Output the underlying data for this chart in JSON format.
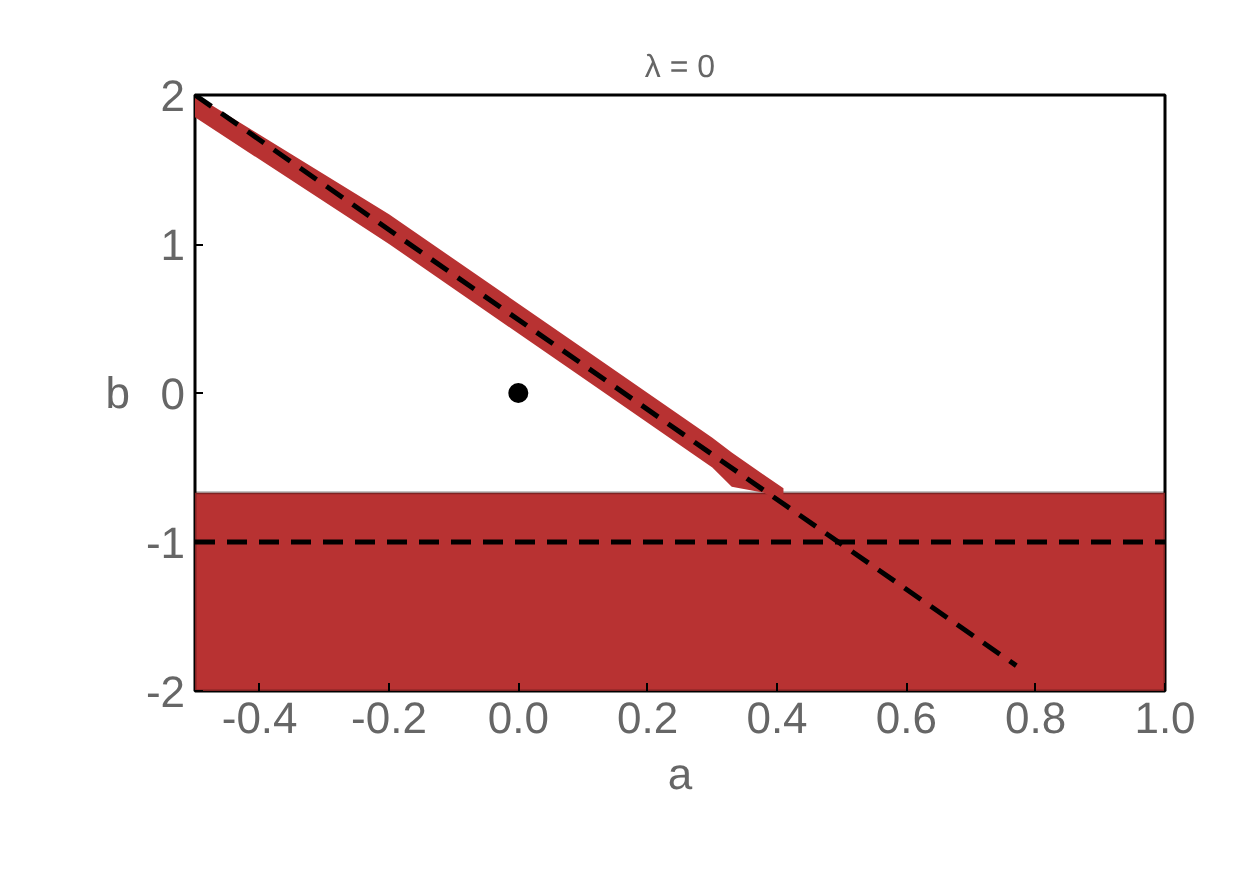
{
  "chart_data": {
    "type": "line",
    "title": "λ = 0",
    "xlabel": "a",
    "ylabel": "b",
    "xlim": [
      -0.5,
      1.0
    ],
    "ylim": [
      -2,
      2
    ],
    "xticks": [
      {
        "value": -0.4,
        "label": "-0.4"
      },
      {
        "value": -0.2,
        "label": "-0.2"
      },
      {
        "value": 0,
        "label": "0.0"
      },
      {
        "value": 0.2,
        "label": "0.2"
      },
      {
        "value": 0.4,
        "label": "0.4"
      },
      {
        "value": 0.6,
        "label": "0.6"
      },
      {
        "value": 0.8,
        "label": "0.8"
      },
      {
        "value": 1,
        "label": "1.0"
      }
    ],
    "yticks": [
      -2,
      -1,
      0,
      1,
      2
    ],
    "grid": false,
    "series": [
      {
        "color": "#b83232",
        "x": [
          -0.5,
          -0.2,
          0.1,
          0.3,
          0.33,
          0.38,
          0.41
        ],
        "values": [
          null,
          null,
          null,
          null,
          null,
          null,
          null
        ],
        "lower": [
          1.85,
          1.0,
          0.1,
          -0.5,
          -0.63,
          -0.67,
          -0.75
        ],
        "upper": [
          2,
          1.2,
          0.3,
          -0.3,
          -0.4,
          -0.55,
          -0.64
        ]
      },
      {
        "color": "#000000",
        "line_style": "dashed",
        "x": [
          -0.5,
          0.77
        ],
        "values": [
          2,
          -1.83
        ]
      },
      {
        "type": "scatter",
        "color": "#000000",
        "marker": "circle",
        "x": [
          0
        ],
        "values": [
          0
        ]
      }
    ],
    "bands": [
      {
        "axis": "y",
        "from": -2,
        "to": -0.67,
        "color": "#b83232"
      }
    ],
    "ref_lines": [
      {
        "axis": "y",
        "value": -1,
        "color": "#000000",
        "line_style": "dashed"
      }
    ]
  }
}
